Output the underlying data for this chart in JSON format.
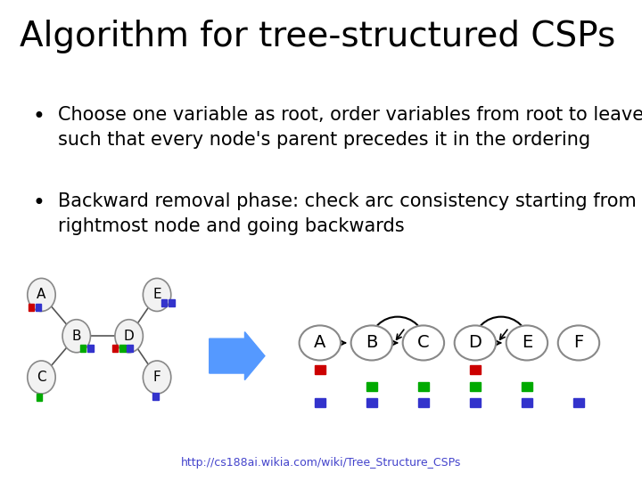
{
  "title": "Algorithm for tree-structured CSPs",
  "bullet1": "Choose one variable as root, order variables from root to leaves\nsuch that every node's parent precedes it in the ordering",
  "bullet2": "Backward removal phase: check arc consistency starting from the\nrightmost node and going backwards",
  "url": "http://cs188ai.wikia.com/wiki/Tree_Structure_CSPs",
  "bg_color": "#ffffff",
  "title_fontsize": 28,
  "bullet_fontsize": 15,
  "tree_nodes": [
    "A",
    "B",
    "C",
    "D",
    "E",
    "F"
  ],
  "tree_edges": [
    [
      "A",
      "B"
    ],
    [
      "B",
      "C"
    ],
    [
      "B",
      "D"
    ],
    [
      "D",
      "E"
    ],
    [
      "D",
      "F"
    ]
  ],
  "linear_nodes": [
    "A",
    "B",
    "C",
    "D",
    "E",
    "F"
  ],
  "linear_arrows": [
    [
      "A",
      "B"
    ],
    [
      "B",
      "C"
    ],
    [
      "D",
      "E"
    ]
  ],
  "back_arcs": [
    [
      "C",
      "B"
    ],
    [
      "E",
      "D"
    ]
  ],
  "red": "#cc0000",
  "green": "#00aa00",
  "blue": "#3333cc",
  "arrow_blue": "#5599ff",
  "node_color": "#f2f2f2",
  "node_edge": "#888888"
}
